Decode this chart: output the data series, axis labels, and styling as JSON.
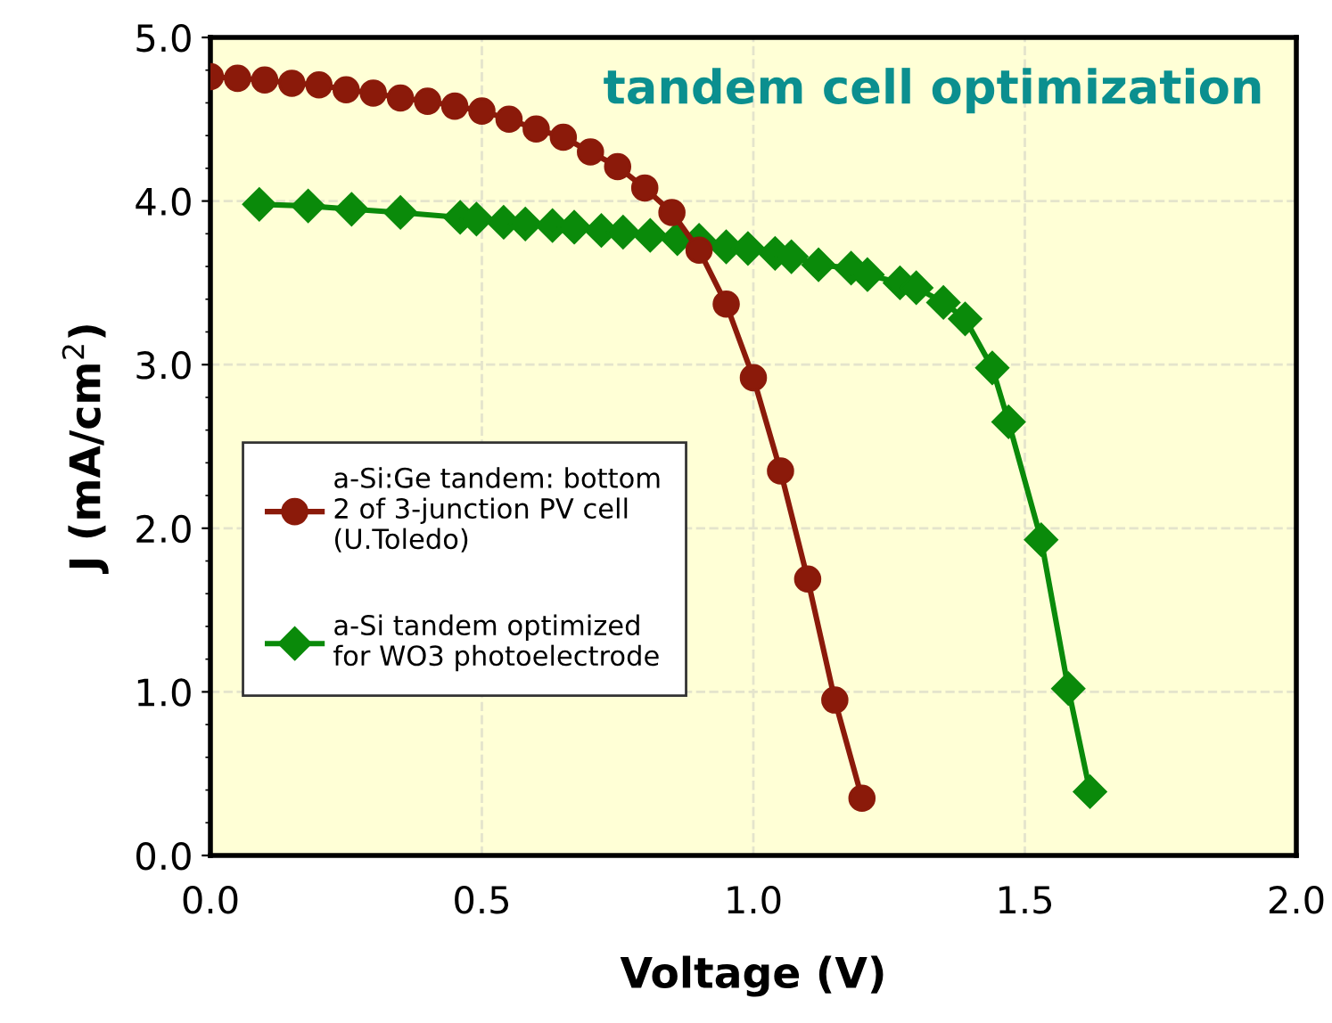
{
  "chart_data": {
    "type": "line",
    "title": "tandem cell optimization",
    "xlabel": "Voltage (V)",
    "ylabel": "J (mA/cm$^{2}$)",
    "xlim": [
      0,
      2
    ],
    "xticks": [
      {
        "value": 0,
        "label": "0.0"
      },
      {
        "value": 0.5,
        "label": "0.5"
      },
      {
        "value": 1,
        "label": "1.0"
      },
      {
        "value": 1.5,
        "label": "1.5"
      },
      {
        "value": 2,
        "label": "2.0"
      }
    ],
    "ylim": [
      0,
      5
    ],
    "yticks": [
      {
        "value": 0,
        "label": "0.0"
      },
      {
        "value": 1,
        "label": "1.0"
      },
      {
        "value": 2,
        "label": "2.0"
      },
      {
        "value": 3,
        "label": "3.0"
      },
      {
        "value": 4,
        "label": "4.0"
      },
      {
        "value": 5,
        "label": "5.0"
      }
    ],
    "grid": true,
    "legend": "left",
    "series": [
      {
        "name": "a-Si:Ge tandem: bottom\n2 of 3-junction PV cell\n(U.Toledo)",
        "color": "#8b1a0a",
        "marker": "circle",
        "x": [
          0,
          0.05,
          0.1,
          0.15,
          0.2,
          0.25,
          0.3,
          0.35,
          0.4,
          0.45,
          0.5,
          0.55,
          0.6,
          0.65,
          0.7,
          0.75,
          0.8,
          0.85,
          0.9,
          0.95,
          1.0,
          1.05,
          1.1,
          1.15,
          1.2
        ],
        "values": [
          4.76,
          4.75,
          4.74,
          4.72,
          4.71,
          4.68,
          4.66,
          4.63,
          4.61,
          4.58,
          4.55,
          4.5,
          4.44,
          4.39,
          4.3,
          4.21,
          4.08,
          3.93,
          3.7,
          3.37,
          2.92,
          2.35,
          1.69,
          0.95,
          0.35
        ]
      },
      {
        "name": "a-Si tandem optimized\nfor WO3 photoelectrode",
        "color": "#0a8a0a",
        "marker": "diamond",
        "x": [
          0.09,
          0.18,
          0.26,
          0.35,
          0.46,
          0.49,
          0.54,
          0.58,
          0.63,
          0.67,
          0.72,
          0.76,
          0.81,
          0.86,
          0.9,
          0.95,
          0.99,
          1.04,
          1.07,
          1.12,
          1.18,
          1.21,
          1.27,
          1.3,
          1.35,
          1.39,
          1.44,
          1.47,
          1.53,
          1.58,
          1.62
        ],
        "values": [
          3.98,
          3.97,
          3.95,
          3.93,
          3.9,
          3.89,
          3.87,
          3.86,
          3.85,
          3.84,
          3.82,
          3.81,
          3.79,
          3.77,
          3.76,
          3.72,
          3.71,
          3.68,
          3.66,
          3.61,
          3.59,
          3.55,
          3.5,
          3.47,
          3.38,
          3.28,
          2.98,
          2.65,
          1.93,
          1.02,
          0.39
        ]
      }
    ]
  }
}
